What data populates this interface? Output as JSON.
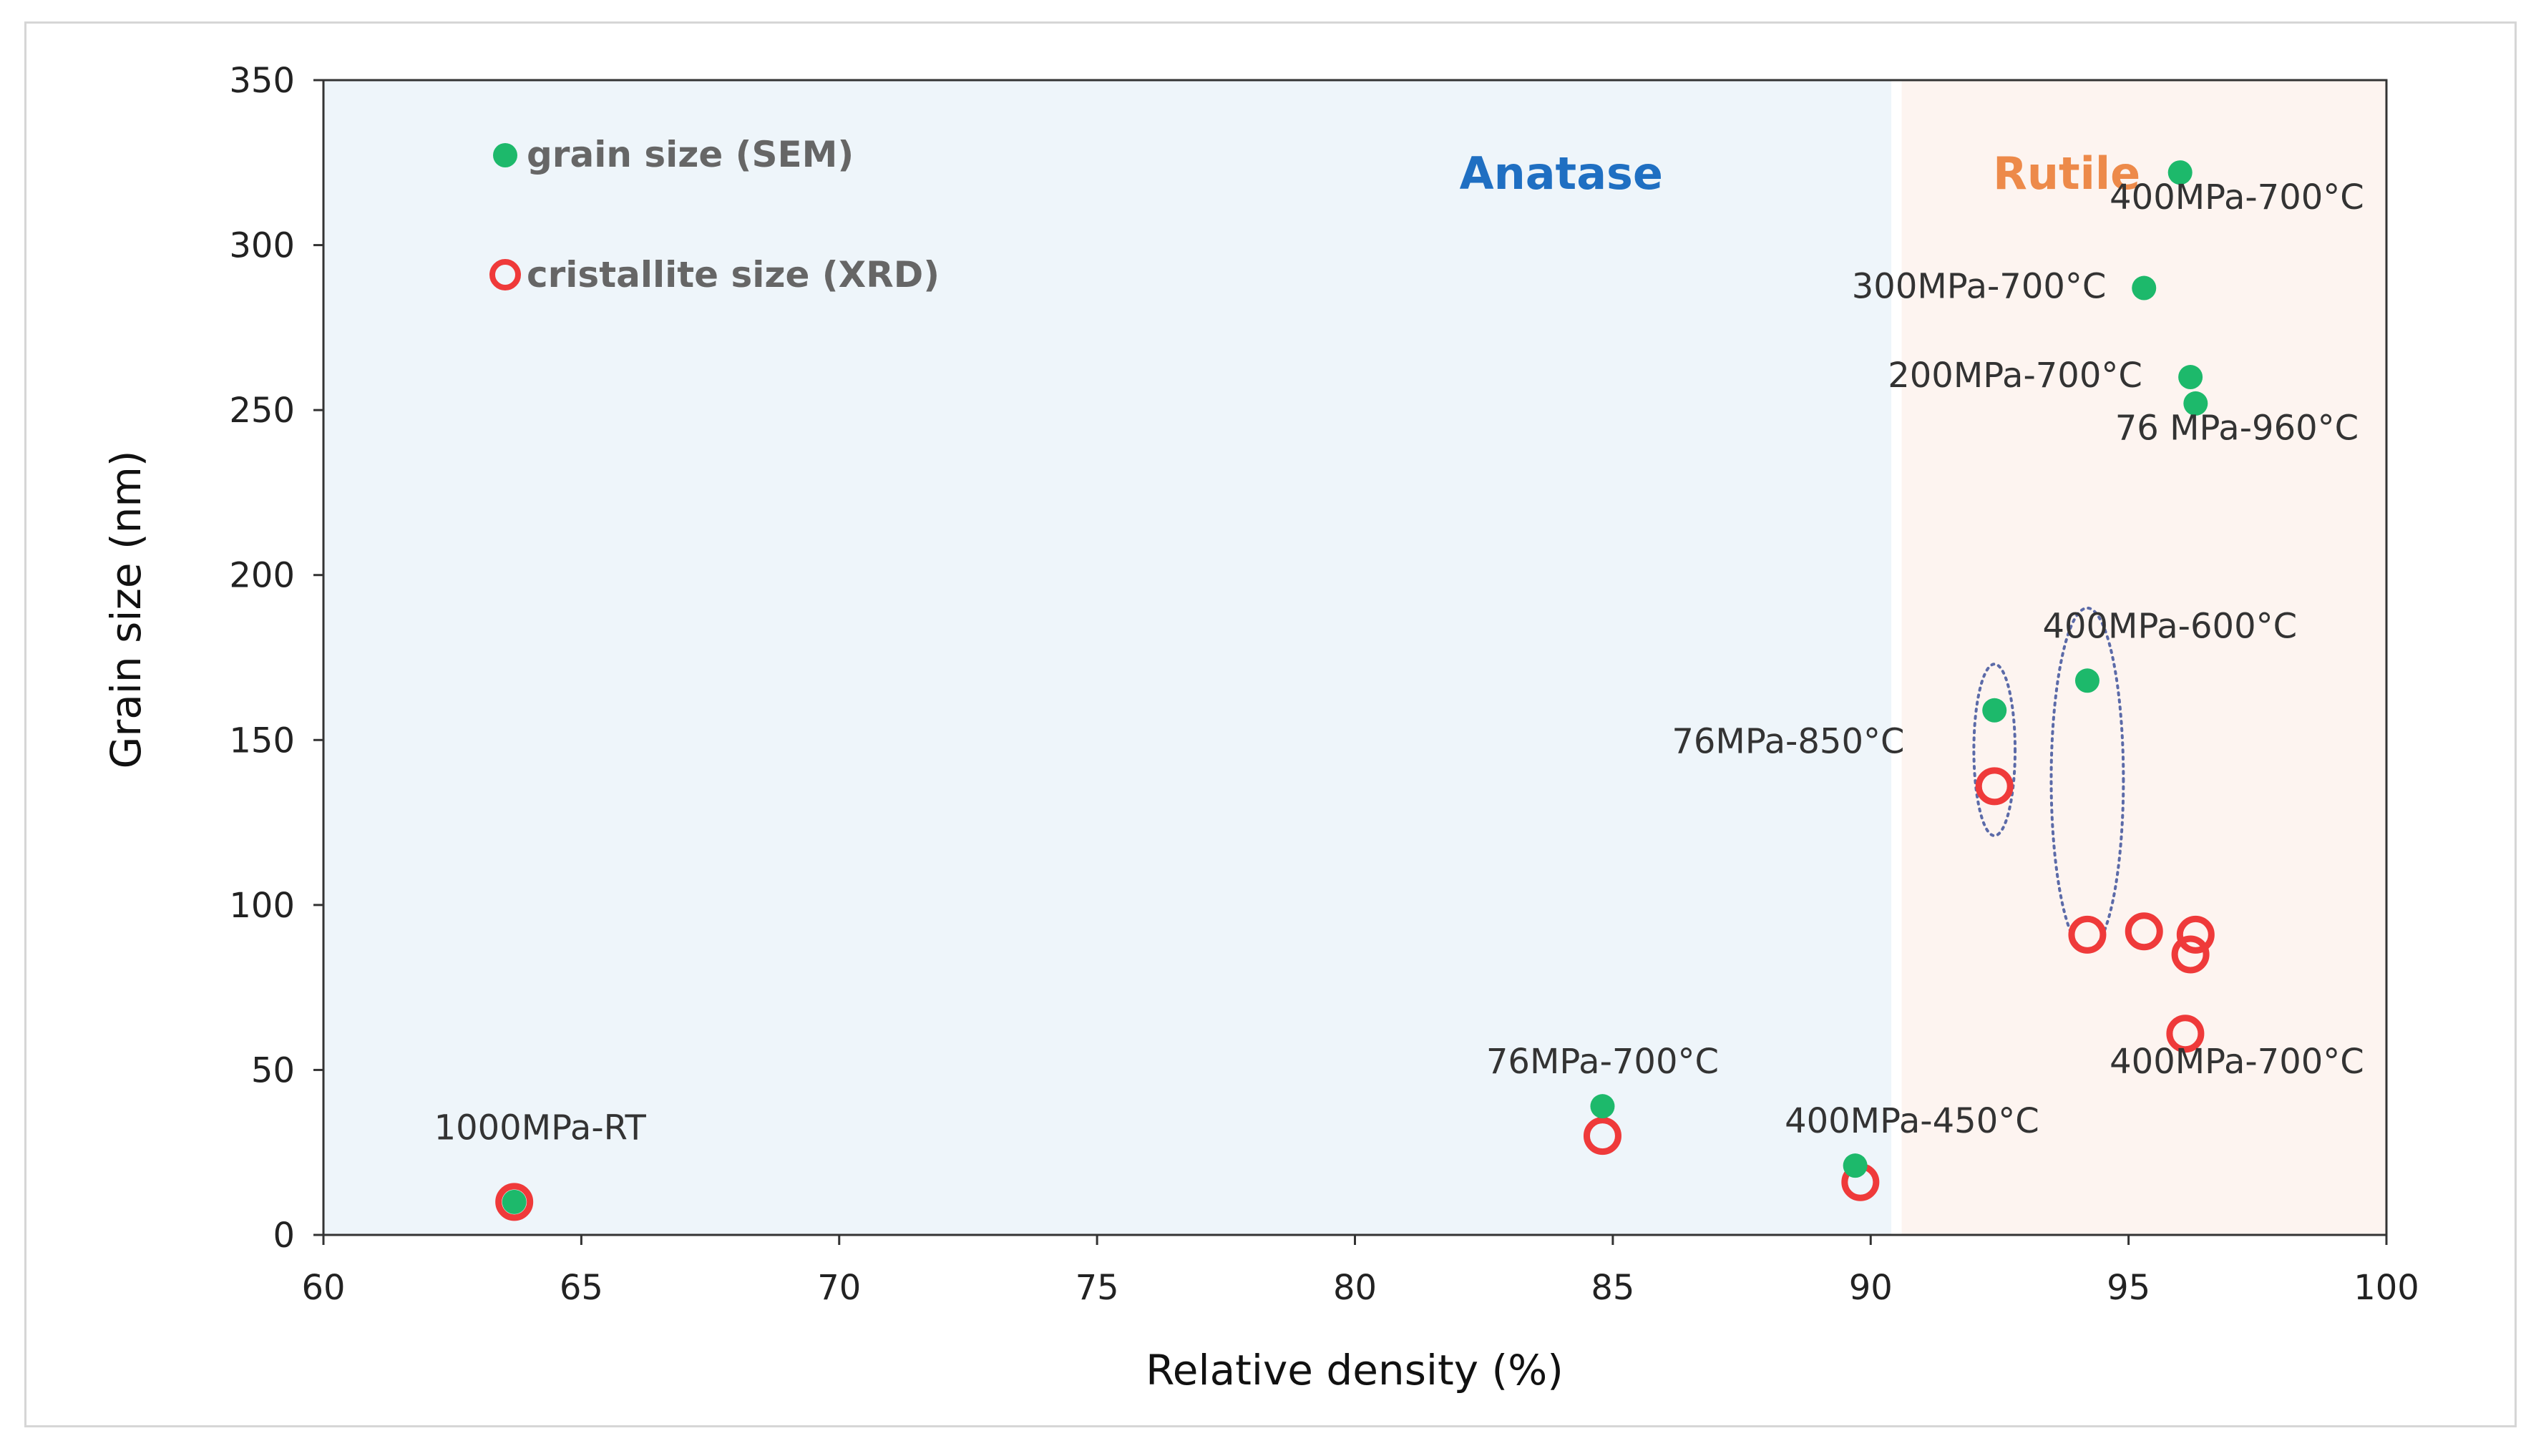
{
  "chart_data": {
    "type": "scatter",
    "xlabel": "Relative density (%)",
    "ylabel": "Grain size (nm)",
    "xlim": [
      60,
      100
    ],
    "ylim": [
      0,
      350
    ],
    "x_ticks": [
      "60",
      "65",
      "70",
      "75",
      "80",
      "85",
      "90",
      "95",
      "100"
    ],
    "y_ticks": [
      "0",
      "50",
      "100",
      "150",
      "200",
      "250",
      "300",
      "350"
    ],
    "regions": [
      {
        "name": "Anatase",
        "x_from": 60,
        "x_to": 90.4,
        "color": "#eef5fa",
        "label_color": "#1f6fc2"
      },
      {
        "name": "Rutile",
        "x_from": 90.6,
        "x_to": 100,
        "color": "#fdf4f0",
        "label_color": "#ed8a4a"
      }
    ],
    "series": [
      {
        "name": "grain size (SEM)",
        "marker": "filled-circle",
        "color": "#1db96b",
        "points": [
          {
            "x": 63.7,
            "y": 10
          },
          {
            "x": 84.8,
            "y": 39
          },
          {
            "x": 89.7,
            "y": 21
          },
          {
            "x": 92.4,
            "y": 159
          },
          {
            "x": 94.2,
            "y": 168
          },
          {
            "x": 95.3,
            "y": 287
          },
          {
            "x": 96.0,
            "y": 322
          },
          {
            "x": 96.2,
            "y": 260
          },
          {
            "x": 96.3,
            "y": 252
          }
        ]
      },
      {
        "name": "cristallite size (XRD)",
        "marker": "open-circle",
        "color": "#ef3a3a",
        "points": [
          {
            "x": 63.7,
            "y": 10
          },
          {
            "x": 84.8,
            "y": 30
          },
          {
            "x": 89.8,
            "y": 16
          },
          {
            "x": 92.4,
            "y": 136
          },
          {
            "x": 94.2,
            "y": 91
          },
          {
            "x": 95.3,
            "y": 92
          },
          {
            "x": 96.3,
            "y": 91
          },
          {
            "x": 96.2,
            "y": 85
          },
          {
            "x": 96.1,
            "y": 61
          }
        ]
      }
    ],
    "annotations": [
      {
        "text": "1000MPa-RT",
        "x": 64.2,
        "y": 29
      },
      {
        "text": "76MPa-700°C",
        "x": 84.8,
        "y": 49
      },
      {
        "text": "400MPa-450°C",
        "x": 90.8,
        "y": 31
      },
      {
        "text": "76MPa-850°C",
        "x": 88.4,
        "y": 146
      },
      {
        "text": "400MPa-600°C",
        "x": 95.8,
        "y": 181
      },
      {
        "text": "300MPa-700°C",
        "x": 92.1,
        "y": 284
      },
      {
        "text": "200MPa-700°C",
        "x": 92.8,
        "y": 257
      },
      {
        "text": "76 MPa-960°C",
        "x": 97.1,
        "y": 241
      },
      {
        "text": "400MPa-700°C",
        "x": 97.1,
        "y": 311
      },
      {
        "text": "400MPa-700°C",
        "x": 97.1,
        "y": 49
      }
    ],
    "groupings": [
      {
        "x_center": 92.4,
        "y_center": 147,
        "x_radius": 0.4,
        "y_radius": 26
      },
      {
        "x_center": 94.2,
        "y_center": 138,
        "x_radius": 0.7,
        "y_radius": 52
      }
    ]
  }
}
